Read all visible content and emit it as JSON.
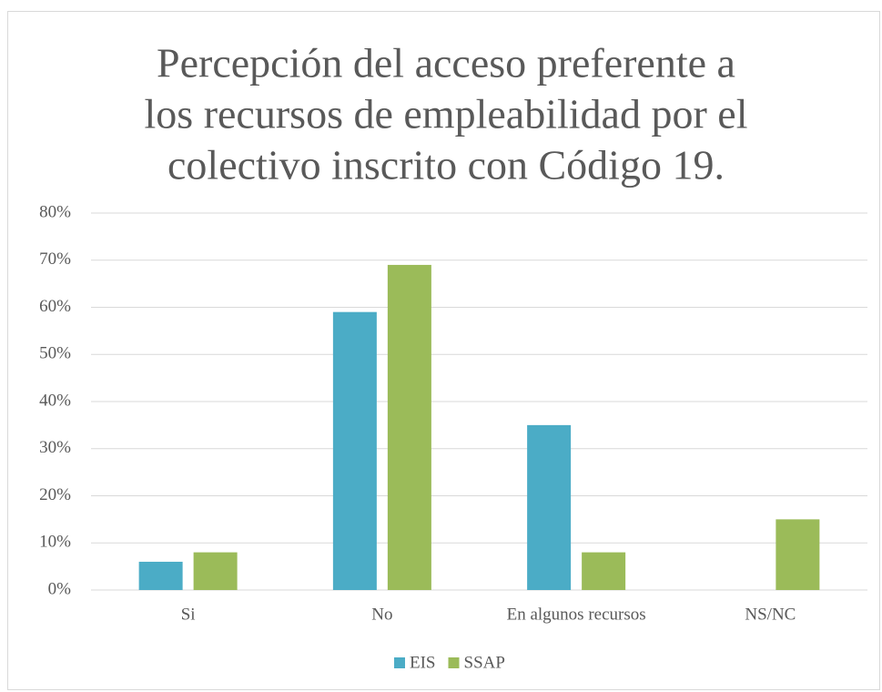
{
  "chart_data": {
    "type": "bar",
    "title": [
      "Percepción del acceso preferente a",
      "los recursos de empleabilidad por el",
      "colectivo inscrito con Código 19."
    ],
    "categories": [
      "Si",
      "No",
      "En algunos recursos",
      "NS/NC"
    ],
    "series": [
      {
        "name": "EIS",
        "color": "#4bacc6",
        "values": [
          6,
          59,
          35,
          0
        ]
      },
      {
        "name": "SSAP",
        "color": "#9bbb59",
        "values": [
          8,
          69,
          8,
          15
        ]
      }
    ],
    "ylim": [
      0,
      80
    ],
    "yticks": [
      {
        "value": 0,
        "label": "0%"
      },
      {
        "value": 10,
        "label": "10%"
      },
      {
        "value": 20,
        "label": "20%"
      },
      {
        "value": 30,
        "label": "30%"
      },
      {
        "value": 40,
        "label": "40%"
      },
      {
        "value": 50,
        "label": "50%"
      },
      {
        "value": 60,
        "label": "60%"
      },
      {
        "value": 70,
        "label": "70%"
      },
      {
        "value": 80,
        "label": "80%"
      }
    ],
    "grid": true,
    "legend": "bottom"
  }
}
